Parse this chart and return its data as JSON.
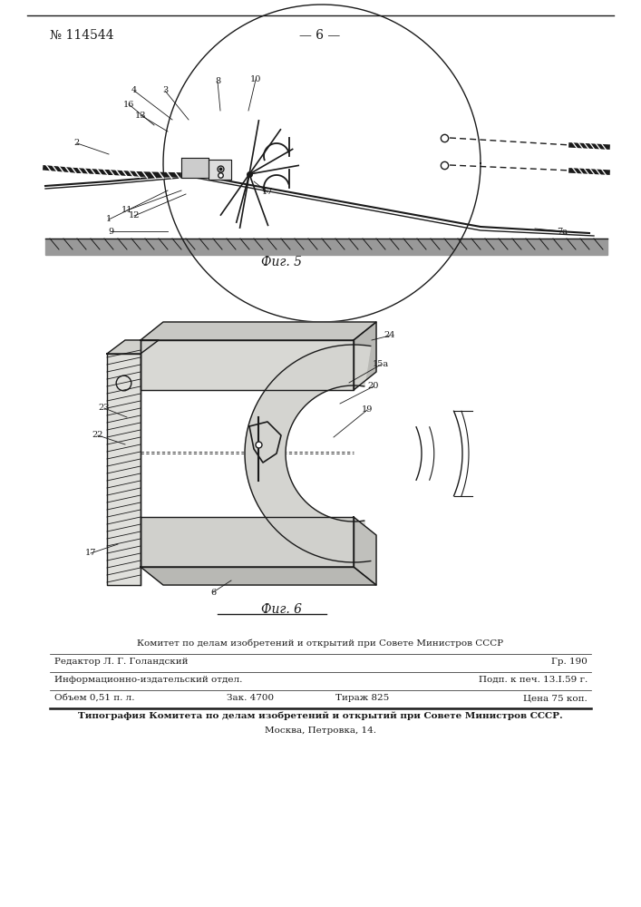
{
  "background_color": "#ffffff",
  "patent_number": "№ 114544",
  "page_number": "— 6 —",
  "fig5_label": "Фиг. 5",
  "fig6_label": "Фиг. 6",
  "footer_line1": "Комитет по делам изобретений и открытий при Совете Министров СССР",
  "footer_editor": "Редактор Л. Г. Голандский",
  "footer_gr": "Гр. 190",
  "footer_info": "Информационно-издательский отдел.",
  "footer_podp": "Подп. к печ. 13.І.59 г.",
  "footer_volume": "Объем 0,51 п. л.",
  "footer_zak": "Зак. 4700",
  "footer_tirazh": "Тираж 825",
  "footer_price": "Цена 75 коп.",
  "footer_tipografia": "Типография Комитета по делам изобретений и открытий при Совете Министров СССР.",
  "footer_address": "Москва, Петровка, 14.",
  "line_color": "#1a1a1a",
  "text_color": "#1a1a1a"
}
